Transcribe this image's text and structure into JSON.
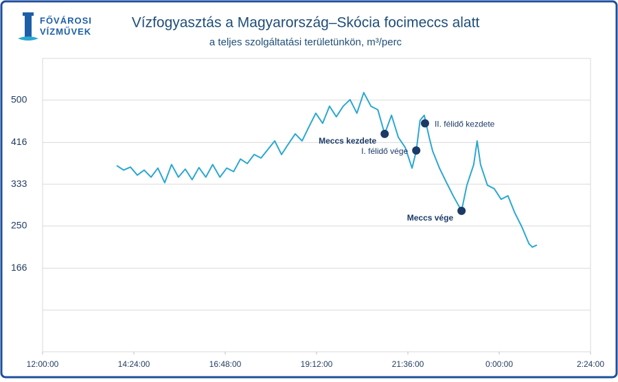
{
  "logo": {
    "line1": "FŐVÁROSI",
    "line2": "VÍZMŰVEK"
  },
  "chart_data": {
    "type": "line",
    "title": "Vízfogyasztás a Magyarország–Skócia focimeccs alatt",
    "subtitle": "a teljes szolgáltatási területünkön, m³/perc",
    "x": [
      13.95,
      14.13,
      14.31,
      14.49,
      14.67,
      14.85,
      15.03,
      15.21,
      15.39,
      15.57,
      15.75,
      15.93,
      16.11,
      16.29,
      16.47,
      16.66,
      16.84,
      17.02,
      17.2,
      17.38,
      17.56,
      17.74,
      17.92,
      18.1,
      18.28,
      18.46,
      18.64,
      18.82,
      19.0,
      19.18,
      19.36,
      19.54,
      19.72,
      19.9,
      20.08,
      20.26,
      20.44,
      20.63,
      20.81,
      20.99,
      21.17,
      21.35,
      21.53,
      21.71,
      21.82,
      21.92,
      22.03,
      22.16,
      22.25,
      22.43,
      22.61,
      22.79,
      23.01,
      23.15,
      23.33,
      23.42,
      23.51,
      23.69,
      23.87,
      24.05,
      24.23,
      24.41,
      24.59,
      24.78,
      24.87,
      24.99
    ],
    "series": [
      {
        "color": "#2aa7d2",
        "values": [
          370,
          361,
          367,
          351,
          361,
          347,
          365,
          336,
          372,
          347,
          363,
          342,
          366,
          347,
          372,
          347,
          365,
          358,
          383,
          374,
          392,
          385,
          402,
          419,
          392,
          413,
          433,
          419,
          447,
          474,
          454,
          488,
          467,
          488,
          501,
          474,
          515,
          488,
          481,
          433,
          470,
          426,
          406,
          365,
          399,
          460,
          470,
          426,
          399,
          365,
          337,
          310,
          280,
          331,
          372,
          419,
          372,
          331,
          324,
          303,
          310,
          276,
          249,
          215,
          208,
          212
        ]
      }
    ],
    "xlim": [
      12,
      26.4
    ],
    "xticks": [
      {
        "value": 12,
        "label": "12:00:00"
      },
      {
        "value": 14.4,
        "label": "14:24:00"
      },
      {
        "value": 16.8,
        "label": "16:48:00"
      },
      {
        "value": 19.2,
        "label": "19:12:00"
      },
      {
        "value": 21.6,
        "label": "21:36:00"
      },
      {
        "value": 24,
        "label": "0:00:00"
      },
      {
        "value": 26.4,
        "label": "2:24:00"
      }
    ],
    "ylim": [
      0,
      583
    ],
    "yticks": [
      166,
      250,
      333,
      416,
      500
    ],
    "ygrid_unlabeled": [
      0,
      83
    ],
    "grid": true,
    "annotations": [
      {
        "text": "Meccs kezdete",
        "x": 20.99,
        "y": 433,
        "side": "left",
        "bold": true
      },
      {
        "text": "I. félidő vége",
        "x": 21.82,
        "y": 400,
        "side": "left",
        "bold": false
      },
      {
        "text": "II. félidő kezdete",
        "x": 22.05,
        "y": 454,
        "side": "right",
        "bold": false
      },
      {
        "text": "Meccs vége",
        "x": 23.01,
        "y": 280,
        "side": "left",
        "bold": true
      }
    ]
  }
}
